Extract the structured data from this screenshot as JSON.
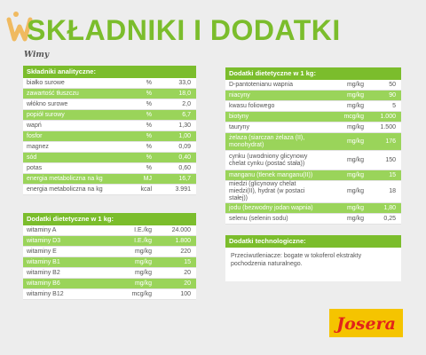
{
  "title": "SKŁADNIKI I DODATKI",
  "signature": "Wimy",
  "brand": {
    "logo_text": "Josera",
    "accent": "#7bbd2c",
    "row_green": "#9ad45a",
    "logo_yellow": "#f5c400",
    "logo_red": "#e2231a"
  },
  "analytical": {
    "header": "Składniki analityczne:",
    "rows": [
      {
        "name": "białko surowe",
        "unit": "%",
        "value": "33,0"
      },
      {
        "name": "zawartość tłuszczu",
        "unit": "%",
        "value": "18,0"
      },
      {
        "name": "włókno surowe",
        "unit": "%",
        "value": "2,0"
      },
      {
        "name": "popiół surowy",
        "unit": "%",
        "value": "6,7"
      },
      {
        "name": "wapń",
        "unit": "%",
        "value": "1,30"
      },
      {
        "name": "fosfor",
        "unit": "%",
        "value": "1,00"
      },
      {
        "name": "magnez",
        "unit": "%",
        "value": "0,09"
      },
      {
        "name": "sód",
        "unit": "%",
        "value": "0,40"
      },
      {
        "name": "potas",
        "unit": "%",
        "value": "0,60"
      },
      {
        "name": "energia metaboliczna na kg",
        "unit": "MJ",
        "value": "16,7"
      },
      {
        "name": "energia metaboliczna na kg",
        "unit": "kcal",
        "value": "3.991"
      }
    ]
  },
  "vitamins": {
    "header": "Dodatki dietetyczne w 1 kg:",
    "rows": [
      {
        "name": "witaminy A",
        "unit": "I.E./kg",
        "value": "24.000"
      },
      {
        "name": "witaminy D3",
        "unit": "I.E./kg",
        "value": "1.800"
      },
      {
        "name": "witaminy E",
        "unit": "mg/kg",
        "value": "220"
      },
      {
        "name": "witaminy B1",
        "unit": "mg/kg",
        "value": "15"
      },
      {
        "name": "witaminy B2",
        "unit": "mg/kg",
        "value": "20"
      },
      {
        "name": "witaminy B6",
        "unit": "mg/kg",
        "value": "20"
      },
      {
        "name": "witaminy B12",
        "unit": "mcg/kg",
        "value": "100"
      }
    ]
  },
  "dietetic": {
    "header": "Dodatki dietetyczne w 1 kg:",
    "rows": [
      {
        "name": "D-pantotenianu wapnia",
        "unit": "mg/kg",
        "value": "50"
      },
      {
        "name": "niacyny",
        "unit": "mg/kg",
        "value": "90"
      },
      {
        "name": "kwasu foliowego",
        "unit": "mg/kg",
        "value": "5"
      },
      {
        "name": "biotyny",
        "unit": "mcg/kg",
        "value": "1.000"
      },
      {
        "name": "tauryny",
        "unit": "mg/kg",
        "value": "1.500"
      },
      {
        "name": "żelaza (siarczan żelaza (II), monohydrat)",
        "unit": "mg/kg",
        "value": "176"
      },
      {
        "name": "cynku (uwodniony glicynowy chelat cynku (postać stała))",
        "unit": "mg/kg",
        "value": "150"
      },
      {
        "name": "manganu (tlenek manganu(II))",
        "unit": "mg/kg",
        "value": "15"
      },
      {
        "name": "miedzi (glicynowy chelat miedzi(II), hydrat (w postaci stałej))",
        "unit": "mg/kg",
        "value": "18"
      },
      {
        "name": "jodu (bezwodny jodan wapnia)",
        "unit": "mg/kg",
        "value": "1,80"
      },
      {
        "name": "selenu (selenin sodu)",
        "unit": "mg/kg",
        "value": "0,25"
      }
    ]
  },
  "technological": {
    "header": "Dodatki technologiczne:",
    "text": "Przeciwutleniacze: bogate w tokoferol ekstrakty pochodzenia naturalnego."
  }
}
